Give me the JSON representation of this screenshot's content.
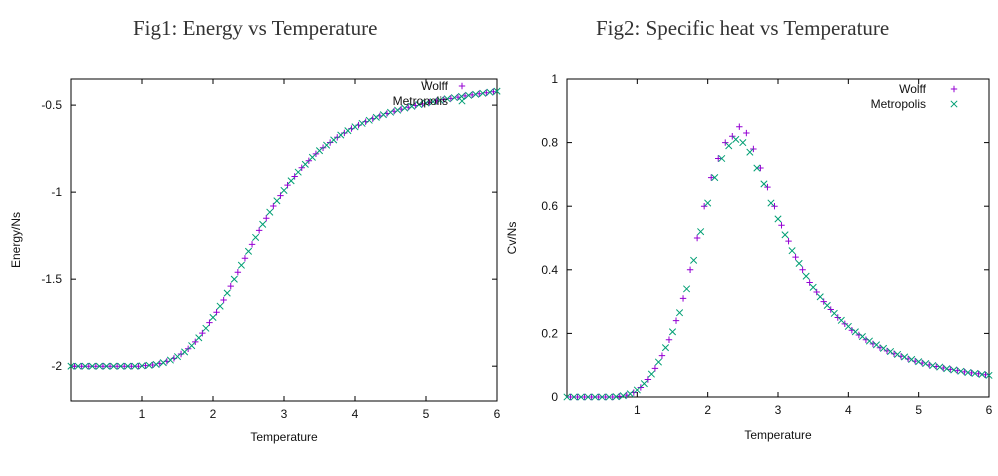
{
  "colors": {
    "wolff": "#9400d3",
    "metropolis": "#009e73",
    "axis": "#000000",
    "text": "#111111"
  },
  "chart_data": [
    {
      "type": "scatter",
      "title": "Fig1: Energy vs Temperature",
      "xlabel": "Temperature",
      "ylabel": "Energy/Ns",
      "xlim": [
        0,
        6
      ],
      "ylim": [
        -2.2,
        -0.35
      ],
      "xticks": [
        "1",
        "2",
        "3",
        "4",
        "5",
        "6"
      ],
      "yticks": [
        "-0.5",
        "-1",
        "-1.5",
        "-2"
      ],
      "grid": false,
      "legend_position": "top-right",
      "series": [
        {
          "name": "Wolff",
          "marker": "plus",
          "x": [
            0.05,
            0.15,
            0.25,
            0.35,
            0.45,
            0.55,
            0.65,
            0.75,
            0.85,
            0.95,
            1.05,
            1.15,
            1.25,
            1.35,
            1.45,
            1.55,
            1.65,
            1.75,
            1.85,
            1.95,
            2.05,
            2.15,
            2.25,
            2.35,
            2.45,
            2.55,
            2.65,
            2.75,
            2.85,
            2.95,
            3.05,
            3.15,
            3.25,
            3.35,
            3.45,
            3.55,
            3.65,
            3.75,
            3.85,
            3.95,
            4.05,
            4.15,
            4.25,
            4.35,
            4.45,
            4.55,
            4.65,
            4.75,
            4.85,
            4.95,
            5.05,
            5.15,
            5.25,
            5.35,
            5.45,
            5.55,
            5.65,
            5.75,
            5.85,
            5.95
          ],
          "y": [
            -2.0,
            -2.0,
            -2.0,
            -2.0,
            -2.0,
            -2.0,
            -2.0,
            -2.0,
            -2.0,
            -2.0,
            -1.997,
            -1.993,
            -1.985,
            -1.972,
            -1.955,
            -1.93,
            -1.9,
            -1.86,
            -1.81,
            -1.75,
            -1.69,
            -1.62,
            -1.54,
            -1.46,
            -1.38,
            -1.3,
            -1.22,
            -1.15,
            -1.08,
            -1.02,
            -0.96,
            -0.91,
            -0.86,
            -0.82,
            -0.78,
            -0.745,
            -0.715,
            -0.685,
            -0.66,
            -0.635,
            -0.615,
            -0.595,
            -0.578,
            -0.562,
            -0.548,
            -0.535,
            -0.523,
            -0.512,
            -0.502,
            -0.493,
            -0.484,
            -0.476,
            -0.468,
            -0.461,
            -0.454,
            -0.447,
            -0.441,
            -0.435,
            -0.429,
            -0.423
          ]
        },
        {
          "name": "Metropolis",
          "marker": "cross",
          "x": [
            0.0,
            0.1,
            0.2,
            0.3,
            0.4,
            0.5,
            0.6,
            0.7,
            0.8,
            0.9,
            1.0,
            1.1,
            1.2,
            1.3,
            1.4,
            1.5,
            1.6,
            1.7,
            1.8,
            1.9,
            2.0,
            2.1,
            2.2,
            2.3,
            2.4,
            2.5,
            2.6,
            2.7,
            2.8,
            2.9,
            3.0,
            3.1,
            3.2,
            3.3,
            3.4,
            3.5,
            3.6,
            3.7,
            3.8,
            3.9,
            4.0,
            4.1,
            4.2,
            4.3,
            4.4,
            4.5,
            4.6,
            4.7,
            4.8,
            4.9,
            5.0,
            5.1,
            5.2,
            5.3,
            5.4,
            5.5,
            5.6,
            5.7,
            5.8,
            5.9,
            6.0
          ],
          "y": [
            -2.0,
            -2.0,
            -2.0,
            -2.0,
            -2.0,
            -2.0,
            -2.0,
            -2.0,
            -2.0,
            -2.0,
            -1.998,
            -1.995,
            -1.99,
            -1.98,
            -1.965,
            -1.945,
            -1.918,
            -1.882,
            -1.837,
            -1.782,
            -1.72,
            -1.655,
            -1.58,
            -1.5,
            -1.42,
            -1.34,
            -1.26,
            -1.185,
            -1.115,
            -1.05,
            -0.99,
            -0.935,
            -0.885,
            -0.84,
            -0.8,
            -0.762,
            -0.73,
            -0.7,
            -0.672,
            -0.647,
            -0.625,
            -0.605,
            -0.587,
            -0.57,
            -0.555,
            -0.541,
            -0.529,
            -0.517,
            -0.507,
            -0.497,
            -0.488,
            -0.48,
            -0.472,
            -0.464,
            -0.457,
            -0.45,
            -0.444,
            -0.438,
            -0.432,
            -0.426,
            -0.42
          ]
        }
      ]
    },
    {
      "type": "scatter",
      "title": "Fig2: Specific heat vs Temperature",
      "xlabel": "Temperature",
      "ylabel": "Cv/Ns",
      "xlim": [
        0,
        6
      ],
      "ylim": [
        0,
        1
      ],
      "xticks": [
        "1",
        "2",
        "3",
        "4",
        "5",
        "6"
      ],
      "yticks": [
        "0",
        "0.2",
        "0.4",
        "0.6",
        "0.8",
        "1"
      ],
      "grid": false,
      "legend_position": "top-right",
      "series": [
        {
          "name": "Wolff",
          "marker": "plus",
          "x": [
            0.05,
            0.15,
            0.25,
            0.35,
            0.45,
            0.55,
            0.65,
            0.75,
            0.85,
            0.95,
            1.05,
            1.15,
            1.25,
            1.35,
            1.45,
            1.55,
            1.65,
            1.75,
            1.85,
            1.95,
            2.05,
            2.15,
            2.25,
            2.35,
            2.45,
            2.55,
            2.65,
            2.75,
            2.85,
            2.95,
            3.05,
            3.15,
            3.25,
            3.35,
            3.45,
            3.55,
            3.65,
            3.75,
            3.85,
            3.95,
            4.05,
            4.15,
            4.25,
            4.35,
            4.45,
            4.55,
            4.65,
            4.75,
            4.85,
            4.95,
            5.05,
            5.15,
            5.25,
            5.35,
            5.45,
            5.55,
            5.65,
            5.75,
            5.85,
            5.95
          ],
          "y": [
            0.0,
            0.0,
            0.0,
            0.0,
            0.0,
            0.0,
            0.0,
            0.002,
            0.006,
            0.014,
            0.03,
            0.055,
            0.09,
            0.13,
            0.18,
            0.24,
            0.31,
            0.4,
            0.5,
            0.6,
            0.69,
            0.75,
            0.8,
            0.82,
            0.85,
            0.83,
            0.78,
            0.72,
            0.66,
            0.6,
            0.54,
            0.49,
            0.44,
            0.4,
            0.36,
            0.33,
            0.3,
            0.275,
            0.25,
            0.23,
            0.21,
            0.195,
            0.18,
            0.167,
            0.155,
            0.145,
            0.136,
            0.128,
            0.12,
            0.113,
            0.107,
            0.101,
            0.096,
            0.091,
            0.087,
            0.083,
            0.079,
            0.076,
            0.073,
            0.07
          ]
        },
        {
          "name": "Metropolis",
          "marker": "cross",
          "x": [
            0.0,
            0.1,
            0.2,
            0.3,
            0.4,
            0.5,
            0.6,
            0.7,
            0.8,
            0.9,
            1.0,
            1.1,
            1.2,
            1.3,
            1.4,
            1.5,
            1.6,
            1.7,
            1.8,
            1.9,
            2.0,
            2.1,
            2.2,
            2.3,
            2.4,
            2.5,
            2.6,
            2.7,
            2.8,
            2.9,
            3.0,
            3.1,
            3.2,
            3.3,
            3.4,
            3.5,
            3.6,
            3.7,
            3.8,
            3.9,
            4.0,
            4.1,
            4.2,
            4.3,
            4.4,
            4.5,
            4.6,
            4.7,
            4.8,
            4.9,
            5.0,
            5.1,
            5.2,
            5.3,
            5.4,
            5.5,
            5.6,
            5.7,
            5.8,
            5.9,
            6.0
          ],
          "y": [
            0.0,
            0.0,
            0.0,
            0.0,
            0.0,
            0.0,
            0.0,
            0.001,
            0.004,
            0.01,
            0.022,
            0.042,
            0.072,
            0.11,
            0.155,
            0.205,
            0.265,
            0.34,
            0.43,
            0.52,
            0.61,
            0.69,
            0.75,
            0.79,
            0.81,
            0.8,
            0.77,
            0.72,
            0.67,
            0.61,
            0.56,
            0.51,
            0.46,
            0.42,
            0.38,
            0.345,
            0.315,
            0.288,
            0.263,
            0.241,
            0.222,
            0.205,
            0.19,
            0.176,
            0.164,
            0.153,
            0.143,
            0.134,
            0.126,
            0.118,
            0.111,
            0.105,
            0.099,
            0.094,
            0.089,
            0.085,
            0.081,
            0.077,
            0.074,
            0.071,
            0.068
          ]
        }
      ]
    }
  ]
}
